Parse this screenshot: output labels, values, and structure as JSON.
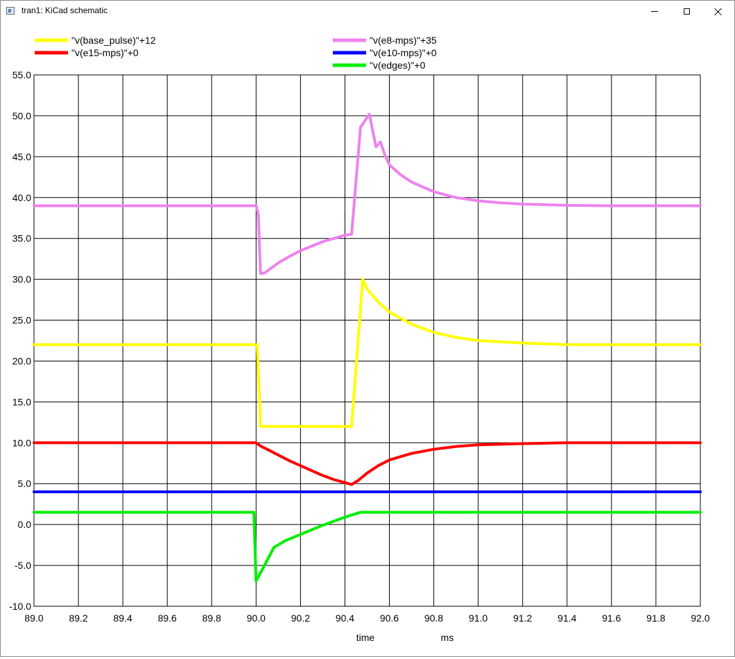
{
  "window": {
    "title": "tran1: KiCad schematic"
  },
  "chart_data": {
    "type": "line",
    "xlabel": "time",
    "xunit": "ms",
    "xlim": [
      89.0,
      92.0
    ],
    "ylim": [
      -10.0,
      55.0
    ],
    "xticks": [
      "89.0",
      "89.2",
      "89.4",
      "89.6",
      "89.8",
      "90.0",
      "90.2",
      "90.4",
      "90.6",
      "90.8",
      "91.0",
      "91.2",
      "91.4",
      "91.6",
      "91.8",
      "92.0"
    ],
    "yticks": [
      "-10.0",
      "-5.0",
      "0.0",
      "5.0",
      "10.0",
      "15.0",
      "20.0",
      "25.0",
      "30.0",
      "35.0",
      "40.0",
      "45.0",
      "50.0",
      "55.0"
    ],
    "grid": true,
    "legend_position": "top",
    "series": [
      {
        "name": "\"v(base_pulse)\"+12",
        "color": "#ffff00",
        "x": [
          89.0,
          90.0,
          90.005,
          90.02,
          90.1,
          90.2,
          90.3,
          90.43,
          90.48,
          90.5,
          90.55,
          90.6,
          90.7,
          90.8,
          90.9,
          91.0,
          91.2,
          91.4,
          91.6,
          91.8,
          92.0
        ],
        "y": [
          22.0,
          22.0,
          22.0,
          12.0,
          12.0,
          12.0,
          12.0,
          12.0,
          30.0,
          28.8,
          27.2,
          26.0,
          24.5,
          23.5,
          22.9,
          22.5,
          22.2,
          22.0,
          22.0,
          22.0,
          22.0
        ]
      },
      {
        "name": "\"v(e15-mps)\"+0",
        "color": "#ff0000",
        "x": [
          89.0,
          90.0,
          90.02,
          90.05,
          90.1,
          90.15,
          90.2,
          90.25,
          90.3,
          90.35,
          90.43,
          90.46,
          90.5,
          90.55,
          90.6,
          90.7,
          90.8,
          90.9,
          91.0,
          91.2,
          91.4,
          91.6,
          91.8,
          92.0
        ],
        "y": [
          10.0,
          10.0,
          9.6,
          9.2,
          8.5,
          7.8,
          7.2,
          6.6,
          6.0,
          5.5,
          4.9,
          5.4,
          6.3,
          7.2,
          7.9,
          8.7,
          9.2,
          9.55,
          9.75,
          9.9,
          10.0,
          10.0,
          10.0,
          10.0
        ]
      },
      {
        "name": "\"v(e8-mps)\"+35",
        "color": "#ee82ee",
        "x": [
          89.0,
          90.0,
          90.01,
          90.02,
          90.04,
          90.1,
          90.15,
          90.2,
          90.3,
          90.4,
          90.43,
          90.47,
          90.48,
          90.5,
          90.51,
          90.54,
          90.56,
          90.58,
          90.6,
          90.65,
          90.7,
          90.8,
          90.9,
          91.0,
          91.1,
          91.2,
          91.4,
          91.6,
          91.8,
          92.0
        ],
        "y": [
          39.0,
          39.0,
          38.0,
          30.7,
          30.8,
          32.0,
          32.8,
          33.5,
          34.6,
          35.4,
          35.5,
          48.6,
          49.0,
          49.8,
          50.2,
          46.2,
          46.8,
          45.2,
          44.0,
          42.8,
          41.9,
          40.7,
          40.0,
          39.6,
          39.35,
          39.2,
          39.05,
          39.0,
          39.0,
          39.0
        ]
      },
      {
        "name": "\"v(e10-mps)\"+0",
        "color": "#0000ff",
        "x": [
          89.0,
          92.0
        ],
        "y": [
          4.0,
          4.0
        ]
      },
      {
        "name": "\"v(edges)\"+0",
        "color": "#00ee00",
        "x": [
          89.0,
          89.99,
          90.0,
          90.03,
          90.08,
          90.13,
          90.2,
          90.3,
          90.4,
          90.47,
          90.5,
          91.0,
          91.5,
          92.0
        ],
        "y": [
          1.5,
          1.5,
          -6.9,
          -5.4,
          -2.8,
          -2.0,
          -1.2,
          -0.1,
          0.9,
          1.5,
          1.5,
          1.5,
          1.5,
          1.5
        ]
      }
    ]
  }
}
